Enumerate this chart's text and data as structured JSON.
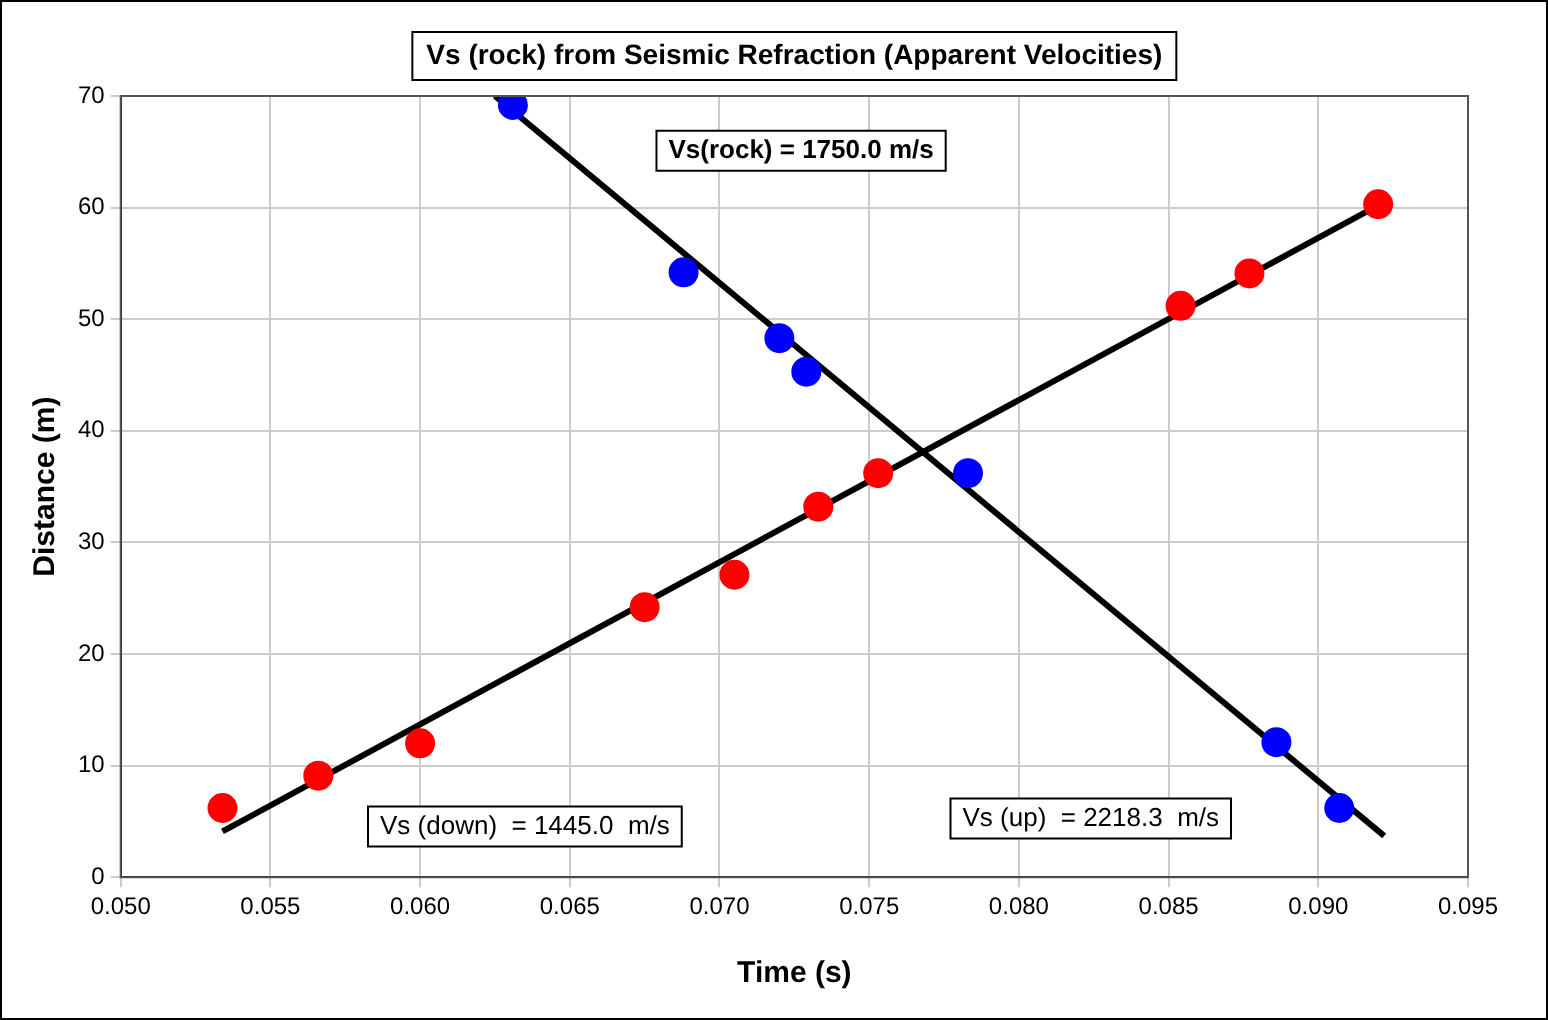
{
  "chart_data": {
    "type": "scatter",
    "title": "Vs (rock) from Seismic Refraction (Apparent Velocities)",
    "xlabel": "Time (s)",
    "ylabel": "Distance (m)",
    "xlim": [
      0.05,
      0.095
    ],
    "xticks": [
      {
        "value": 0.05,
        "label": "0.050"
      },
      {
        "value": 0.055,
        "label": "0.055"
      },
      {
        "value": 0.06,
        "label": "0.060"
      },
      {
        "value": 0.065,
        "label": "0.065"
      },
      {
        "value": 0.07,
        "label": "0.070"
      },
      {
        "value": 0.075,
        "label": "0.075"
      },
      {
        "value": 0.08,
        "label": "0.080"
      },
      {
        "value": 0.085,
        "label": "0.085"
      },
      {
        "value": 0.09,
        "label": "0.090"
      },
      {
        "value": 0.095,
        "label": "0.095"
      }
    ],
    "ylim": [
      0,
      70
    ],
    "yticks": [
      0,
      10,
      20,
      30,
      40,
      50,
      60,
      70
    ],
    "grid": true,
    "legend": false,
    "marker": "circle",
    "series": [
      {
        "color": "#ff0000",
        "x": [
          0.0534,
          0.0566,
          0.06,
          0.0675,
          0.0705,
          0.0733,
          0.0753,
          0.0854,
          0.0877,
          0.092
        ],
        "values": [
          6.2,
          9.1,
          12.0,
          24.2,
          27.1,
          33.2,
          36.2,
          51.2,
          54.1,
          60.3
        ]
      },
      {
        "color": "#0000ff",
        "x": [
          0.0631,
          0.0688,
          0.072,
          0.0729,
          0.0783,
          0.0886,
          0.0907
        ],
        "values": [
          69.2,
          54.2,
          48.3,
          45.3,
          36.2,
          12.1,
          6.2
        ]
      },
      {
        "type": "line",
        "color": "#000000",
        "marker": "none",
        "line_style": "solid",
        "x": [
          0.0534,
          0.092
        ],
        "values": [
          4.1,
          60.2
        ]
      },
      {
        "type": "line",
        "color": "#000000",
        "marker": "none",
        "line_style": "solid",
        "x": [
          0.0625,
          0.0922
        ],
        "values": [
          70,
          3.7
        ]
      }
    ],
    "annotations": [
      "Vs(rock) = 1750.0 m/s",
      "Vs (down)  = 1445.0  m/s",
      "Vs (up)  = 2218.3  m/s"
    ]
  }
}
